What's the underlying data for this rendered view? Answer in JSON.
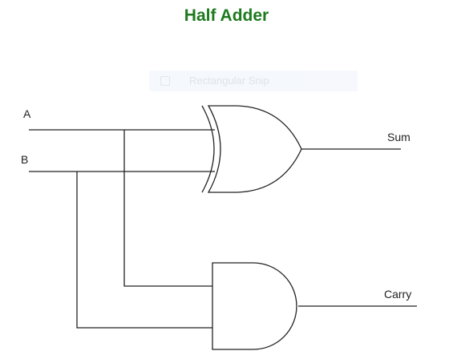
{
  "title": "Half Adder",
  "overlay": {
    "label": "Rectangular Snip",
    "icon": "scissors-icon"
  },
  "inputs": {
    "a": "A",
    "b": "B"
  },
  "outputs": {
    "sum": "Sum",
    "carry": "Carry"
  },
  "gates": {
    "xor": "xor-gate",
    "and": "and-gate"
  },
  "colors": {
    "title": "#1e7a1e",
    "lines": "#222222"
  }
}
